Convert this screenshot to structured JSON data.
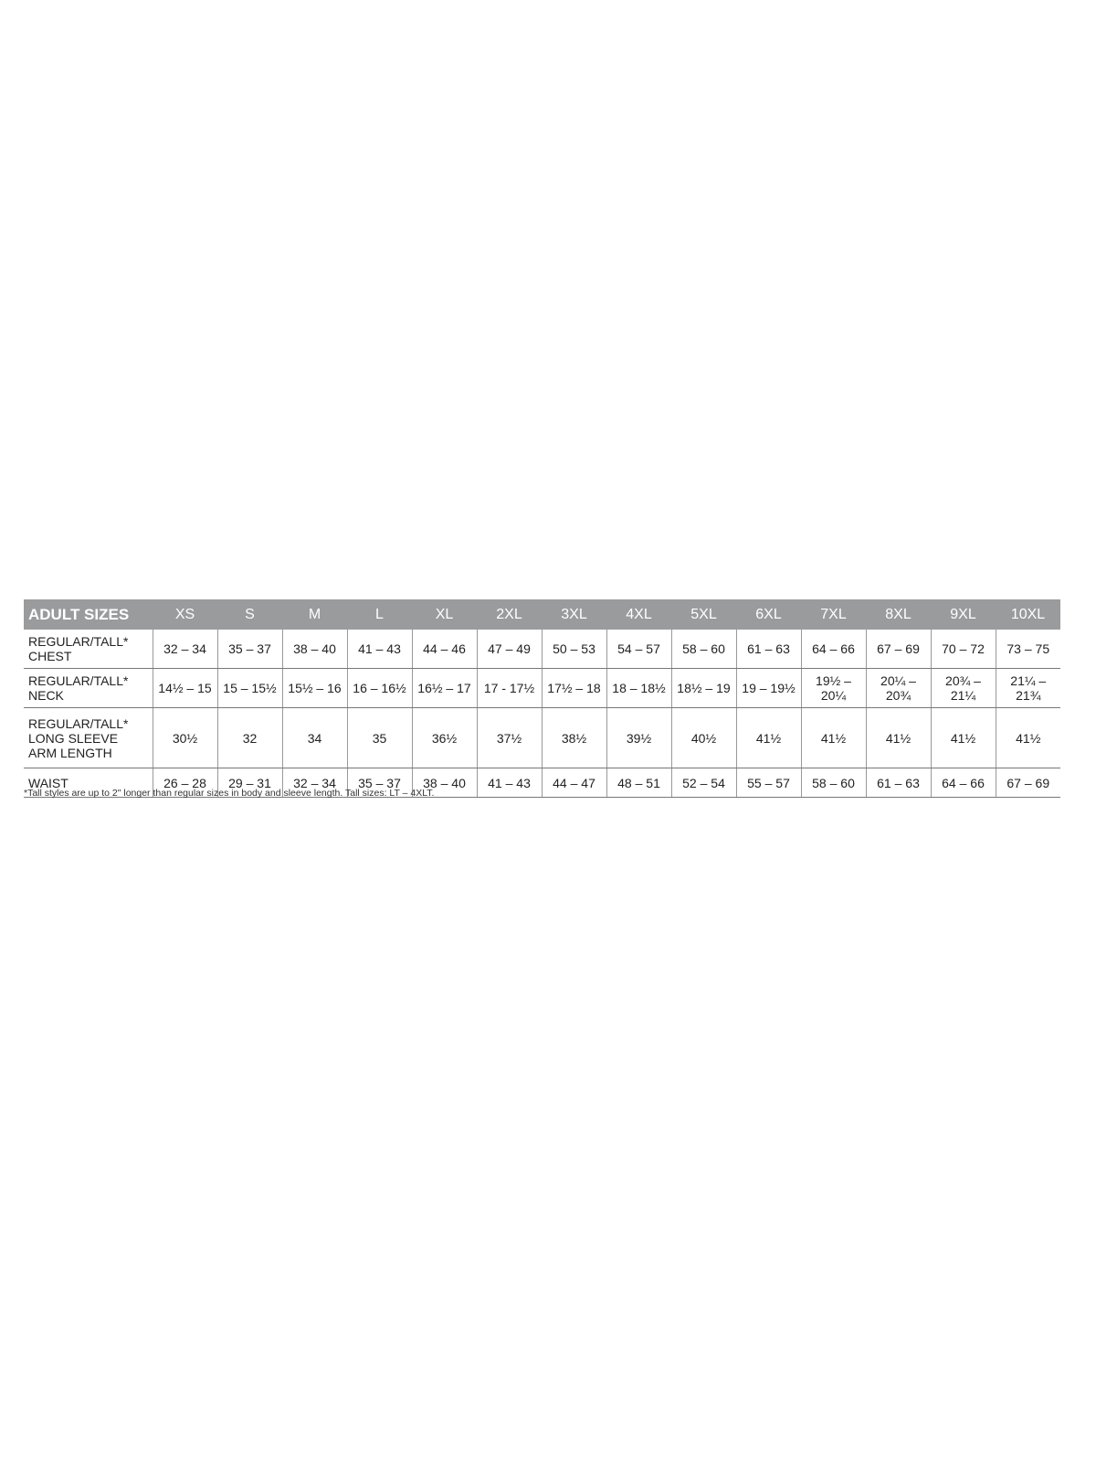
{
  "table": {
    "header_label": "ADULT SIZES",
    "sizes": [
      "XS",
      "S",
      "M",
      "L",
      "XL",
      "2XL",
      "3XL",
      "4XL",
      "5XL",
      "6XL",
      "7XL",
      "8XL",
      "9XL",
      "10XL"
    ],
    "rows": [
      {
        "label": [
          "REGULAR/TALL*",
          "CHEST"
        ],
        "values": [
          "32 – 34",
          "35 – 37",
          "38 – 40",
          "41 – 43",
          "44 – 46",
          "47 – 49",
          "50 – 53",
          "54 – 57",
          "58 – 60",
          "61 – 63",
          "64 – 66",
          "67 – 69",
          "70 – 72",
          "73 – 75"
        ]
      },
      {
        "label": [
          "REGULAR/TALL*",
          "NECK"
        ],
        "values": [
          "14½ – 15",
          "15 – 15½",
          "15½ – 16",
          "16 – 16½",
          "16½ – 17",
          "17 - 17½",
          "17½ – 18",
          "18 – 18½",
          "18½ – 19",
          "19 – 19½",
          "19½ – 20¼",
          "20¼ – 20¾",
          "20¾ – 21¼",
          "21¼ – 21¾"
        ]
      },
      {
        "label": [
          "REGULAR/TALL*",
          "LONG SLEEVE",
          "ARM LENGTH"
        ],
        "values": [
          "30½",
          "32",
          "34",
          "35",
          "36½",
          "37½",
          "38½",
          "39½",
          "40½",
          "41½",
          "41½",
          "41½",
          "41½",
          "41½"
        ]
      },
      {
        "label": [
          "WAIST"
        ],
        "values": [
          "26 – 28",
          "29 – 31",
          "32 – 34",
          "35 – 37",
          "38 – 40",
          "41 – 43",
          "44 – 47",
          "48 – 51",
          "52 – 54",
          "55 – 57",
          "58 – 60",
          "61 – 63",
          "64 – 66",
          "67 – 69"
        ]
      }
    ]
  },
  "footnote": "*Tall styles are up to 2\" longer than regular sizes in body and sleeve length. Tall sizes: LT – 4XLT.",
  "colors": {
    "header_bg": "#9a9b9d",
    "header_text": "#ffffff"
  }
}
